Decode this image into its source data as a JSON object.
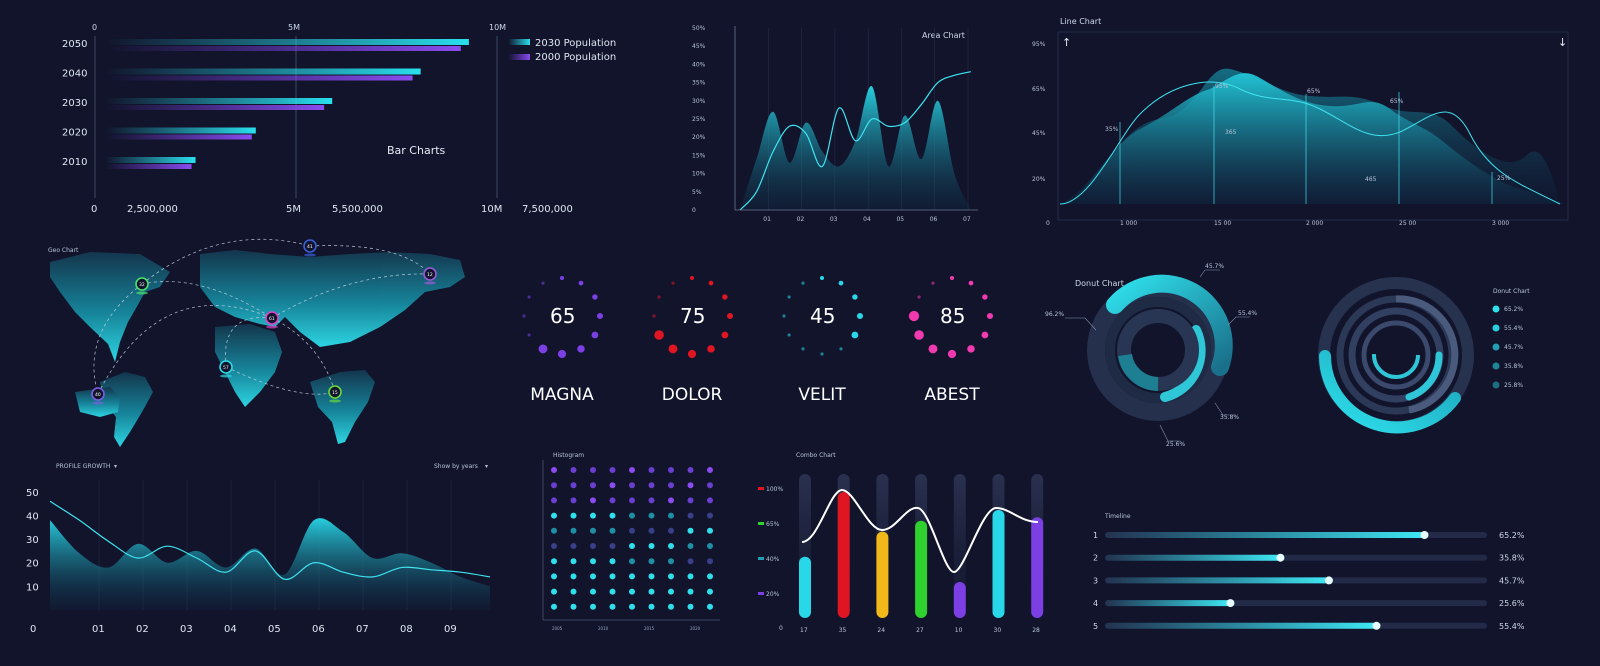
{
  "colors": {
    "bg": "#11142b",
    "cyan": "#29d8e8",
    "purple": "#7b3fe4",
    "red": "#e01522",
    "magenta": "#f23ab0",
    "green": "#2ed12e",
    "yellow": "#f2b81a"
  },
  "chart_data": [
    {
      "id": "bar",
      "type": "bar",
      "title": "Bar Charts",
      "orientation": "horizontal",
      "categories": [
        "2050",
        "2040",
        "2030",
        "2020",
        "2010"
      ],
      "series": [
        {
          "name": "2030 Population",
          "values": [
            9.3,
            8.1,
            5.9,
            4.0,
            2.5
          ]
        },
        {
          "name": "2000 Population",
          "values": [
            9.1,
            7.9,
            5.7,
            3.9,
            2.4
          ]
        }
      ],
      "top_ticks": [
        "0",
        "5M",
        "10M"
      ],
      "bottom_ticks": [
        "0",
        "2,500,000",
        "5M",
        "5,500,000",
        "10M",
        "7,500,000"
      ],
      "xlim": [
        0,
        10
      ]
    },
    {
      "id": "area",
      "type": "area",
      "title": "Area Chart",
      "x_ticks": [
        "01",
        "02",
        "03",
        "04",
        "05",
        "06",
        "07"
      ],
      "y_ticks": [
        "0",
        "5%",
        "10%",
        "15%",
        "20%",
        "25%",
        "30%",
        "35%",
        "40%",
        "45%",
        "50%"
      ],
      "ylim": [
        0,
        50
      ],
      "series": [
        {
          "values": [
            0,
            14,
            27,
            13,
            24,
            16,
            12,
            19,
            34,
            12,
            26,
            14,
            30,
            10,
            0
          ]
        },
        {
          "values": [
            0,
            5,
            16,
            23,
            21,
            12,
            28,
            19,
            25,
            23,
            24,
            29,
            35,
            37,
            38
          ]
        }
      ]
    },
    {
      "id": "line",
      "type": "area",
      "title": "Line Chart",
      "x_ticks": [
        "0",
        "1 000",
        "15 00",
        "2 000",
        "25 00",
        "3 000"
      ],
      "y_ticks": [
        "95%",
        "65%",
        "45%",
        "20%"
      ],
      "annotations": [
        "35%",
        "95%",
        "365",
        "65%",
        "65%",
        "465",
        "25%"
      ]
    },
    {
      "id": "gauges",
      "type": "pie",
      "items": [
        {
          "name": "MAGNA",
          "value": 65,
          "color": "#7b3fe4"
        },
        {
          "name": "DOLOR",
          "value": 75,
          "color": "#e01522"
        },
        {
          "name": "VELIT",
          "value": 45,
          "color": "#29d8e8"
        },
        {
          "name": "ABEST",
          "value": 85,
          "color": "#f23ab0"
        }
      ]
    },
    {
      "id": "donut1",
      "type": "pie",
      "title": "Donut Chart",
      "labels": [
        "45.7%",
        "55.4%",
        "96.2%",
        "35.8%",
        "25.6%"
      ]
    },
    {
      "id": "donut2",
      "type": "pie",
      "title": "Donut Chart",
      "legend": [
        "65.2%",
        "55.4%",
        "45.7%",
        "35.8%",
        "25.8%"
      ]
    },
    {
      "id": "growth",
      "type": "area",
      "title": "PROFILE GROWTH",
      "filter": "Show by years",
      "x_ticks": [
        "0",
        "01",
        "02",
        "03",
        "04",
        "05",
        "06",
        "07",
        "08",
        "09"
      ],
      "y_ticks": [
        "50",
        "40",
        "30",
        "20",
        "10"
      ],
      "ylim": [
        0,
        55
      ],
      "series": [
        {
          "values": [
            38,
            24,
            18,
            28,
            20,
            25,
            18,
            26,
            15,
            38,
            33,
            22,
            24,
            20,
            14,
            10
          ]
        },
        {
          "values": [
            46,
            38,
            29,
            22,
            27,
            22,
            16,
            25,
            13,
            20,
            16,
            14,
            18,
            17,
            16,
            14
          ]
        }
      ]
    },
    {
      "id": "histogram",
      "type": "scatter",
      "title": "Histogram",
      "x_ticks": [
        "2005",
        "2010",
        "2015",
        "2020"
      ]
    },
    {
      "id": "combo",
      "type": "bar",
      "title": "Combo Chart",
      "categories": [
        "17",
        "35",
        "24",
        "27",
        "10",
        "30",
        "28"
      ],
      "values": [
        17,
        35,
        24,
        27,
        10,
        30,
        28
      ],
      "legend": [
        "100%",
        "65%",
        "40%",
        "20%"
      ],
      "baseline_label": "0"
    },
    {
      "id": "timeline",
      "type": "bar",
      "title": "Timeline",
      "categories": [
        "1",
        "2",
        "3",
        "4",
        "5"
      ],
      "values": [
        65.2,
        35.8,
        45.7,
        25.6,
        55.4
      ],
      "value_labels": [
        "65.2%",
        "35.8%",
        "45.7%",
        "25.6%",
        "55.4%"
      ]
    }
  ],
  "geo": {
    "title": "Geo Chart",
    "marker_numbers": [
      "32",
      "41",
      "12",
      "61",
      "57",
      "15",
      "40"
    ]
  },
  "misc": {
    "arrow_up": "↑",
    "arrow_down": "↓",
    "caret": "▾"
  }
}
